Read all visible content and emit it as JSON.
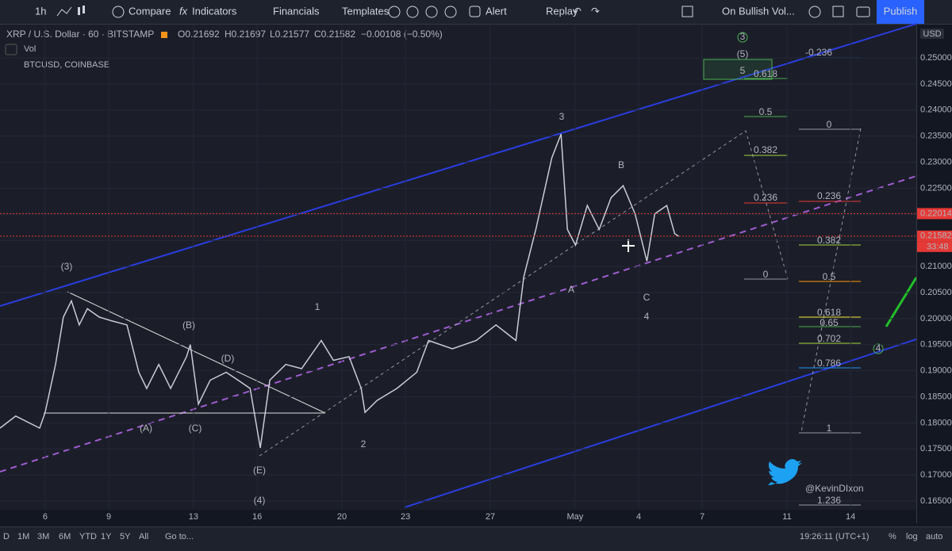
{
  "toolbar": {
    "interval": "1h",
    "compare": "Compare",
    "indicators": "Indicators",
    "financials": "Financials",
    "templates": "Templates",
    "alert": "Alert",
    "replay": "Replay",
    "alert_name": "On Bullish Vol...",
    "publish": "Publish"
  },
  "legend": {
    "symbol": "XRP / U.S. Dollar · 60 · BITSTAMP",
    "open": "O0.21692",
    "high": "H0.21697",
    "low": "L0.21577",
    "close": "C0.21582",
    "change": "−0.00108 (−0.50%)",
    "volume": "Vol",
    "compare_symbol": "BTCUSD, COINBASE"
  },
  "chart_data": {
    "type": "line",
    "color": "#c9ccd6",
    "x": [
      3.87,
      4.61,
      5.74,
      6,
      6.49,
      6.86,
      7.24,
      7.61,
      7.99,
      8.55,
      9.11,
      9.86,
      10.42,
      10.79,
      11.36,
      11.92,
      12.67,
      12.85,
      13.23,
      13.79,
      14.54,
      15.1,
      15.67,
      16.15,
      16.6,
      17.35,
      18.1,
      19.03,
      19.6,
      20.34,
      20.91,
      21.09,
      21.66,
      22.59,
      23.53,
      24.09,
      25.21,
      26.34,
      27.27,
      28.21,
      28.58,
      29.15,
      29.9,
      30.34,
      30.64,
      31.02,
      31.58,
      32.14,
      32.7,
      33.27,
      33.83,
      34.39,
      34.76,
      35.33,
      35.7,
      35.89
    ],
    "values": [
      0.179,
      0.1813,
      0.179,
      0.182,
      0.1912,
      0.2003,
      0.2034,
      0.1988,
      0.2019,
      0.2003,
      0.1996,
      0.1988,
      0.1897,
      0.1866,
      0.1912,
      0.1866,
      0.1927,
      0.195,
      0.1836,
      0.1882,
      0.1897,
      0.1882,
      0.1866,
      0.1752,
      0.1882,
      0.1912,
      0.1904,
      0.1958,
      0.192,
      0.1927,
      0.1866,
      0.182,
      0.1843,
      0.1866,
      0.1897,
      0.1958,
      0.1942,
      0.1958,
      0.1988,
      0.1958,
      0.208,
      0.2171,
      0.2308,
      0.2354,
      0.2171,
      0.2141,
      0.2217,
      0.2171,
      0.2232,
      0.2255,
      0.2201,
      0.211,
      0.2201,
      0.2217,
      0.2163,
      0.2158
    ],
    "xlim": [
      3.87,
      47.1
    ],
    "xticks": [
      6,
      9,
      13,
      16,
      20,
      23,
      27,
      {
        "value": 31,
        "label": "May"
      },
      {
        "value": 34,
        "label": "4"
      },
      {
        "value": 37,
        "label": "7"
      },
      {
        "value": 41,
        "label": "11"
      },
      {
        "value": 44,
        "label": "14"
      }
    ],
    "ylim": [
      0.16333,
      0.2564
    ],
    "yticks": [
      {
        "value": 0.165,
        "label": "0.16500"
      },
      {
        "value": 0.17,
        "label": "0.17000"
      },
      {
        "value": 0.175,
        "label": "0.17500"
      },
      {
        "value": 0.18,
        "label": "0.18000"
      },
      {
        "value": 0.185,
        "label": "0.18500"
      },
      {
        "value": 0.19,
        "label": "0.19000"
      },
      {
        "value": 0.195,
        "label": "0.19500"
      },
      {
        "value": 0.2,
        "label": "0.20000"
      },
      {
        "value": 0.205,
        "label": "0.20500"
      },
      {
        "value": 0.21,
        "label": "0.21000"
      },
      {
        "value": 0.215,
        "label": "0.21500"
      },
      {
        "value": 0.22,
        "label": "0.22000"
      },
      {
        "value": 0.225,
        "label": "0.22500"
      },
      {
        "value": 0.23,
        "label": "0.23000"
      },
      {
        "value": 0.235,
        "label": "0.23500"
      },
      {
        "value": 0.24,
        "label": "0.24000"
      },
      {
        "value": 0.245,
        "label": "0.24500"
      },
      {
        "value": 0.25,
        "label": "0.25000"
      }
    ],
    "grid": true,
    "axis_unit": "USD",
    "price_markers": [
      {
        "value": 0.22014,
        "label": "0.22014",
        "color": "#e53935"
      },
      {
        "value": 0.21582,
        "label": "0.21582",
        "color": "#e53935"
      }
    ],
    "countdown": "33:48"
  },
  "annotations": [
    "(3)",
    "(B)",
    "(D)",
    "(A)",
    "(C)",
    "(E)",
    "(4)",
    "1",
    "2",
    "3",
    "A",
    "B",
    "C",
    "4",
    "(5)",
    "5",
    "3",
    "4",
    "0.618",
    "0.5",
    "0.382",
    "0.236",
    "0",
    "-0.236",
    "0",
    "0.236",
    "0.382",
    "0.5",
    "0.618",
    "0.65",
    "0.702",
    "0.786",
    "1",
    "1.236"
  ],
  "watermark": "@KevinDIxon",
  "bottom_bar": {
    "ranges": [
      "D",
      "1M",
      "3M",
      "6M",
      "YTD",
      "1Y",
      "5Y",
      "All"
    ],
    "goto": "Go to...",
    "clock": "19:26:11 (UTC+1)",
    "percent": "%",
    "log": "log",
    "auto": "auto"
  }
}
